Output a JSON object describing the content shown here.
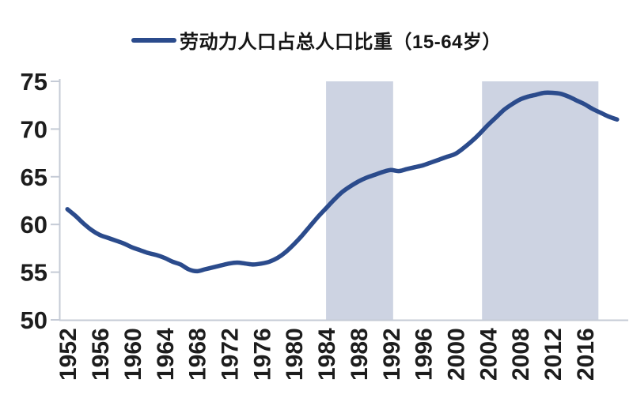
{
  "legend": {
    "label": "劳动力人口占总人口比重（15-64岁）",
    "line_color": "#2b4b8c"
  },
  "chart_data": {
    "type": "line",
    "title": "劳动力人口占总人口比重（15-64岁）",
    "xlabel": "",
    "ylabel": "",
    "x": [
      1952,
      1953,
      1954,
      1955,
      1956,
      1957,
      1958,
      1959,
      1960,
      1961,
      1962,
      1963,
      1964,
      1965,
      1966,
      1967,
      1968,
      1969,
      1970,
      1971,
      1972,
      1973,
      1974,
      1975,
      1976,
      1977,
      1978,
      1979,
      1980,
      1981,
      1982,
      1983,
      1984,
      1985,
      1986,
      1987,
      1988,
      1989,
      1990,
      1991,
      1992,
      1993,
      1994,
      1995,
      1996,
      1997,
      1998,
      1999,
      2000,
      2001,
      2002,
      2003,
      2004,
      2005,
      2006,
      2007,
      2008,
      2009,
      2010,
      2011,
      2012,
      2013,
      2014,
      2015,
      2016,
      2017,
      2018,
      2019,
      2020
    ],
    "series": [
      {
        "name": "劳动力人口占总人口比重（15-64岁）",
        "values": [
          61.6,
          60.9,
          60.1,
          59.4,
          58.9,
          58.6,
          58.3,
          58.0,
          57.6,
          57.3,
          57.0,
          56.8,
          56.5,
          56.1,
          55.8,
          55.3,
          55.1,
          55.3,
          55.5,
          55.7,
          55.9,
          56.0,
          55.9,
          55.8,
          55.9,
          56.1,
          56.5,
          57.1,
          57.9,
          58.8,
          59.8,
          60.8,
          61.7,
          62.6,
          63.4,
          64.0,
          64.5,
          64.9,
          65.2,
          65.5,
          65.7,
          65.6,
          65.8,
          66.0,
          66.2,
          66.5,
          66.8,
          67.1,
          67.4,
          68.0,
          68.7,
          69.5,
          70.4,
          71.2,
          72.0,
          72.6,
          73.1,
          73.4,
          73.6,
          73.8,
          73.8,
          73.7,
          73.4,
          73.0,
          72.6,
          72.1,
          71.7,
          71.3,
          71.0
        ]
      }
    ],
    "xticks": [
      1952,
      1956,
      1960,
      1964,
      1968,
      1972,
      1976,
      1980,
      1984,
      1988,
      1992,
      1996,
      2000,
      2004,
      2008,
      2012,
      2016
    ],
    "yticks": [
      50,
      55,
      60,
      65,
      70,
      75
    ],
    "ylim": [
      50,
      75
    ],
    "xlim": [
      1951,
      2021
    ],
    "grid": false,
    "legend_position": "top-center",
    "highlight_bands": [
      {
        "from": 1984.0,
        "to": 1992.3
      },
      {
        "from": 2003.3,
        "to": 2017.7
      }
    ],
    "colors": {
      "line": "#2b4b8c",
      "band": "#cdd3e2",
      "axis": "#c5cbd6",
      "tick_label": "#1d1d1d"
    }
  }
}
